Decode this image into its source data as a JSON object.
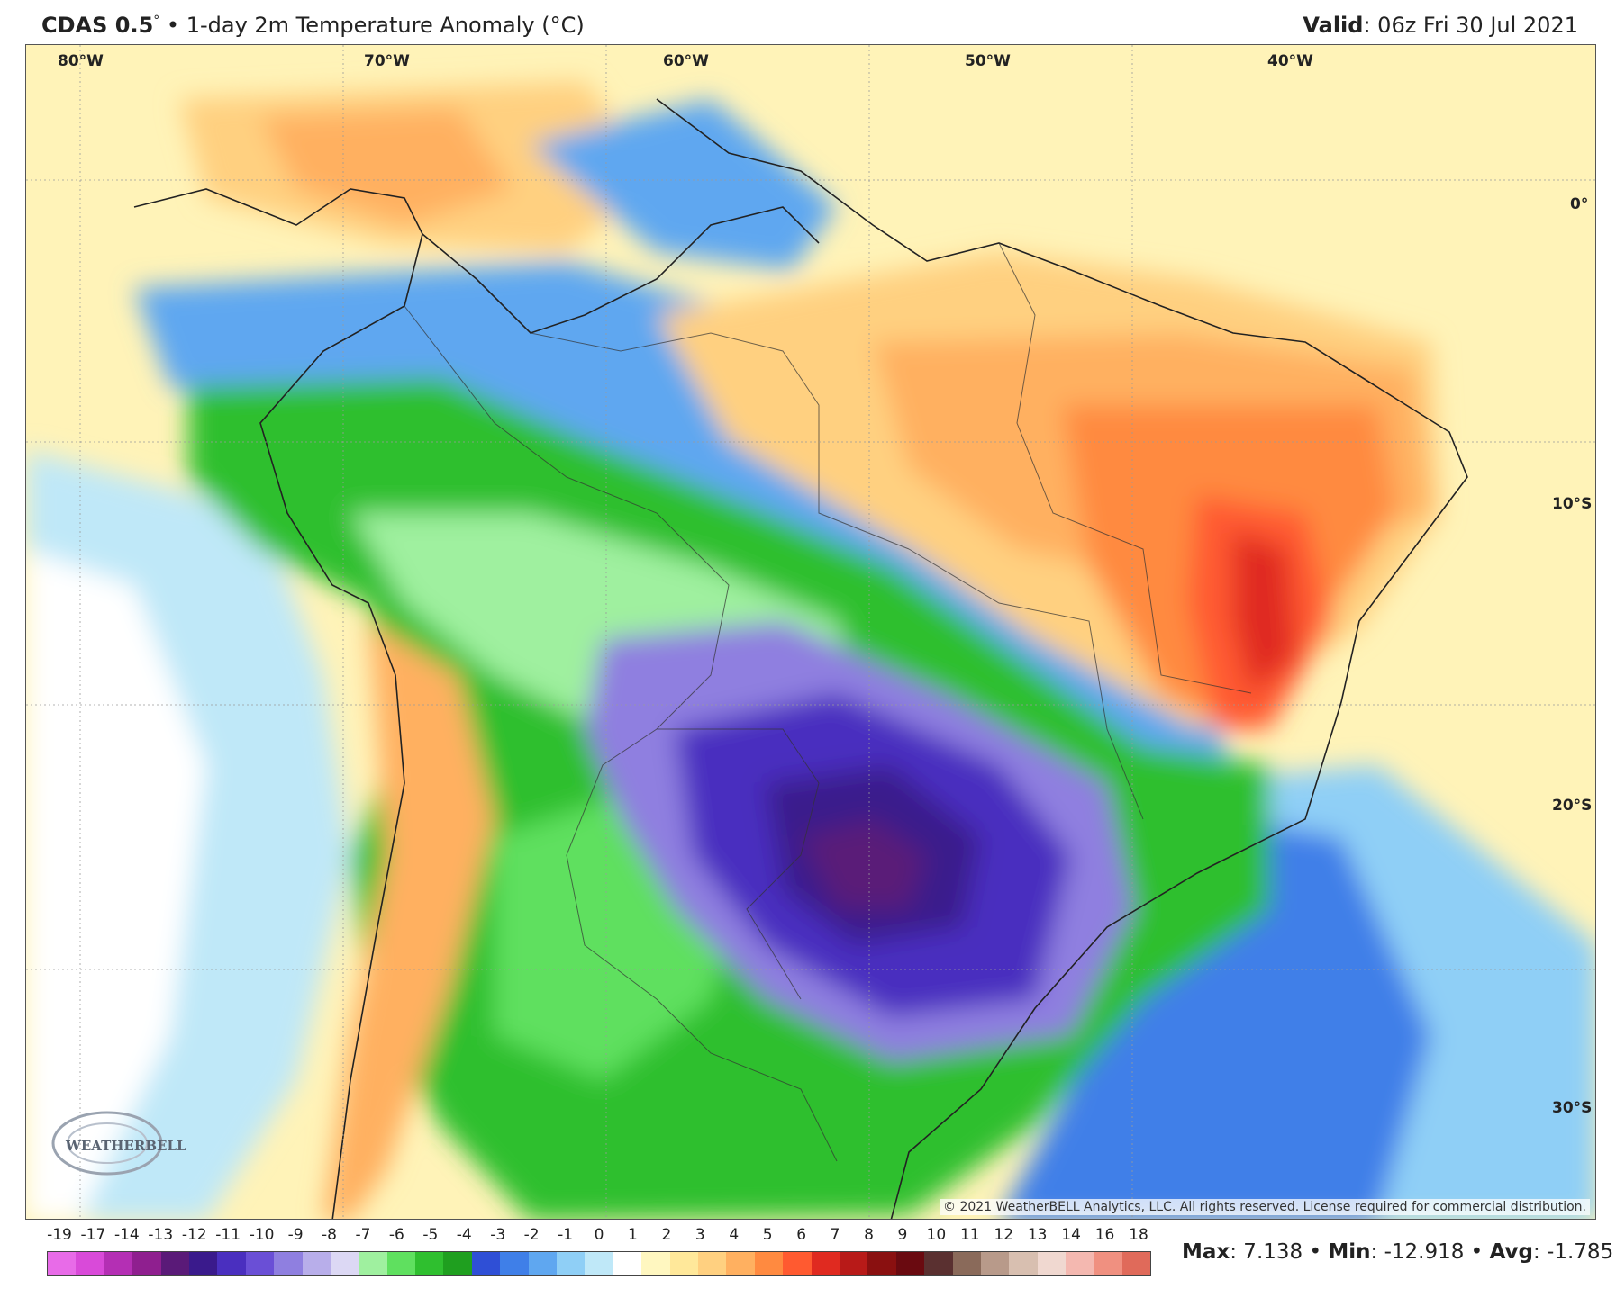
{
  "header": {
    "model": "CDAS 0.5",
    "model_deg": "°",
    "bullet": "•",
    "product": "1-day 2m Temperature Anomaly (°C)",
    "valid_label": "Valid",
    "valid_value": ": 06z Fri 30 Jul 2021"
  },
  "map": {
    "lon_labels": [
      "80°W",
      "70°W",
      "60°W",
      "50°W",
      "40°W"
    ],
    "lat_labels": [
      "0°",
      "10°S",
      "20°S",
      "30°S"
    ],
    "copyright": "© 2021 WeatherBELL Analytics, LLC. All rights reserved. License required for commercial distribution.",
    "logo_text": "WEATHERBELL"
  },
  "colorbar": {
    "ticks": [
      "-19",
      "-17",
      "-14",
      "-13",
      "-12",
      "-11",
      "-10",
      "-9",
      "-8",
      "-7",
      "-6",
      "-5",
      "-4",
      "-3",
      "-2",
      "-1",
      "0",
      "1",
      "2",
      "3",
      "4",
      "5",
      "6",
      "7",
      "8",
      "9",
      "10",
      "11",
      "12",
      "13",
      "14",
      "16",
      "18"
    ],
    "colors": [
      "#e86be8",
      "#d94ad9",
      "#b42fb4",
      "#8f1f8f",
      "#5a1a78",
      "#3a1a8c",
      "#4a2fbf",
      "#6a4fd6",
      "#8f7fe0",
      "#b8aeea",
      "#dcd8f4",
      "#9ff09f",
      "#5fe05f",
      "#2fbf2f",
      "#1f9f1f",
      "#2f4fd6",
      "#3f7fe8",
      "#5fa7f0",
      "#8fcff6",
      "#bfe8f8",
      "#ffffff",
      "#fff7c0",
      "#ffe89a",
      "#ffd080",
      "#ffb060",
      "#ff8a40",
      "#ff5a30",
      "#e02a20",
      "#b81a18",
      "#8a1010",
      "#6a0a10",
      "#5a3030",
      "#8a6a5a",
      "#b89a8a",
      "#d8bfb0",
      "#f0d8d0",
      "#f4b8b0",
      "#f09080",
      "#e06a5a"
    ]
  },
  "stats": {
    "max_label": "Max",
    "max_value": ": 7.138",
    "min_label": "Min",
    "min_value": ": -12.918",
    "avg_label": "Avg",
    "avg_value": ": -1.785",
    "sep": " • "
  }
}
